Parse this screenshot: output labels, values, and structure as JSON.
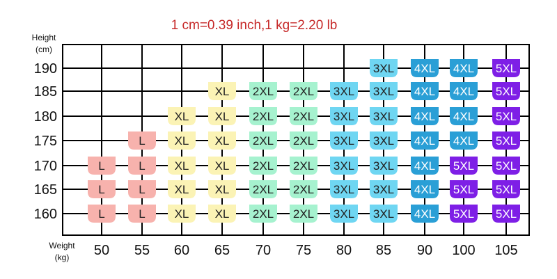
{
  "chart_data": {
    "type": "table",
    "title": "1 cm=0.39 inch,1 kg=2.20 lb",
    "ylabel": "Height",
    "ylabel_unit": "(cm)",
    "xlabel": "Weight",
    "xlabel_unit": "(kg)",
    "x": [
      50,
      55,
      60,
      65,
      70,
      75,
      80,
      85,
      90,
      100,
      105
    ],
    "y": [
      190,
      185,
      180,
      175,
      170,
      165,
      160
    ],
    "x_tick_labels": [
      "50",
      "55",
      "60",
      "65",
      "70",
      "75",
      "80",
      "85",
      "90",
      "100",
      "105"
    ],
    "y_tick_labels": [
      "190",
      "185",
      "180",
      "175",
      "170",
      "165",
      "160"
    ],
    "grid": true,
    "cells": [
      [
        "",
        "",
        "",
        "",
        "",
        "",
        "",
        "3XL",
        "4XL",
        "4XL",
        "5XL"
      ],
      [
        "",
        "",
        "",
        "XL",
        "2XL",
        "2XL",
        "3XL",
        "3XL",
        "4XL",
        "4XL",
        "5XL"
      ],
      [
        "",
        "",
        "XL",
        "XL",
        "2XL",
        "2XL",
        "3XL",
        "3XL",
        "4XL",
        "4XL",
        "5XL"
      ],
      [
        "",
        "L",
        "XL",
        "XL",
        "2XL",
        "2XL",
        "3XL",
        "3XL",
        "4XL",
        "4XL",
        "5XL"
      ],
      [
        "L",
        "L",
        "XL",
        "XL",
        "2XL",
        "2XL",
        "3XL",
        "3XL",
        "4XL",
        "5XL",
        "5XL"
      ],
      [
        "L",
        "L",
        "XL",
        "XL",
        "2XL",
        "2XL",
        "3XL",
        "3XL",
        "4XL",
        "5XL",
        "5XL"
      ],
      [
        "L",
        "L",
        "XL",
        "XL",
        "2XL",
        "2XL",
        "3XL",
        "3XL",
        "4XL",
        "5XL",
        "5XL"
      ]
    ],
    "size_colors": {
      "L": "#f7b2ad",
      "XL": "#fbf3b5",
      "2XL": "#a6f2cf",
      "3XL": "#6fd6f2",
      "4XL": "#2a9fd6",
      "5XL": "#7e1fe6"
    },
    "text_colors": {
      "L": "#222222",
      "XL": "#222222",
      "2XL": "#222222",
      "3XL": "#222222",
      "4XL": "#ffffff",
      "5XL": "#ffffff"
    },
    "note_color": "#c62828"
  }
}
